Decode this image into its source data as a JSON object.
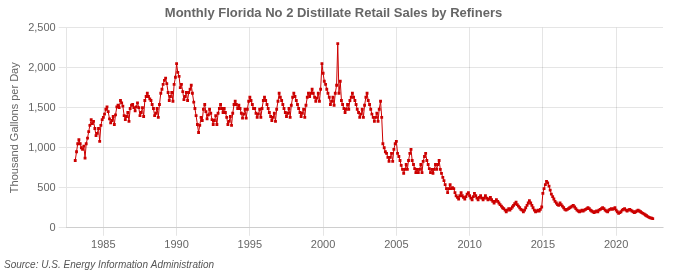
{
  "chart_data": {
    "type": "line",
    "title": "Monthly Florida No 2 Distillate Retail Sales by Refiners",
    "ylabel": "Thousand Gallons per Day",
    "annotations": [
      "Source: U.S. Energy Information Administration"
    ],
    "color": "#cc0000",
    "marker": "square",
    "grid": true,
    "xlim": [
      1982.5,
      2023.2
    ],
    "xticks": [
      1985,
      1990,
      1995,
      2000,
      2005,
      2010,
      2015,
      2020
    ],
    "ylim": [
      0,
      2500
    ],
    "yticks": [
      0,
      500,
      {
        "value": 1000,
        "label": "1,000"
      },
      {
        "value": 1500,
        "label": "1,500"
      },
      {
        "value": 2000,
        "label": "2,000"
      },
      {
        "value": 2500,
        "label": "2,500"
      }
    ],
    "x": [
      1983.08,
      1983.17,
      1983.25,
      1983.33,
      1983.42,
      1983.5,
      1983.58,
      1983.67,
      1983.75,
      1983.83,
      1983.92,
      1984,
      1984.08,
      1984.17,
      1984.25,
      1984.33,
      1984.42,
      1984.5,
      1984.58,
      1984.67,
      1984.75,
      1984.83,
      1984.92,
      1985,
      1985.08,
      1985.17,
      1985.25,
      1985.33,
      1985.42,
      1985.5,
      1985.58,
      1985.67,
      1985.75,
      1985.83,
      1985.92,
      1986,
      1986.08,
      1986.17,
      1986.25,
      1986.33,
      1986.42,
      1986.5,
      1986.58,
      1986.67,
      1986.75,
      1986.83,
      1986.92,
      1987,
      1987.08,
      1987.17,
      1987.25,
      1987.33,
      1987.42,
      1987.5,
      1987.58,
      1987.67,
      1987.75,
      1987.83,
      1987.92,
      1988,
      1988.08,
      1988.17,
      1988.25,
      1988.33,
      1988.42,
      1988.5,
      1988.58,
      1988.67,
      1988.75,
      1988.83,
      1988.92,
      1989,
      1989.08,
      1989.17,
      1989.25,
      1989.33,
      1989.42,
      1989.5,
      1989.58,
      1989.67,
      1989.75,
      1989.83,
      1989.92,
      1990,
      1990.08,
      1990.17,
      1990.25,
      1990.33,
      1990.42,
      1990.5,
      1990.58,
      1990.67,
      1990.75,
      1990.83,
      1990.92,
      1991,
      1991.08,
      1991.17,
      1991.25,
      1991.33,
      1991.42,
      1991.5,
      1991.58,
      1991.67,
      1991.75,
      1991.83,
      1991.92,
      1992,
      1992.08,
      1992.17,
      1992.25,
      1992.33,
      1992.42,
      1992.5,
      1992.58,
      1992.67,
      1992.75,
      1992.83,
      1992.92,
      1993,
      1993.08,
      1993.17,
      1993.25,
      1993.33,
      1993.42,
      1993.5,
      1993.58,
      1993.67,
      1993.75,
      1993.83,
      1993.92,
      1994,
      1994.08,
      1994.17,
      1994.25,
      1994.33,
      1994.42,
      1994.5,
      1994.58,
      1994.67,
      1994.75,
      1994.83,
      1994.92,
      1995,
      1995.08,
      1995.17,
      1995.25,
      1995.33,
      1995.42,
      1995.5,
      1995.58,
      1995.67,
      1995.75,
      1995.83,
      1995.92,
      1996,
      1996.08,
      1996.17,
      1996.25,
      1996.33,
      1996.42,
      1996.5,
      1996.58,
      1996.67,
      1996.75,
      1996.83,
      1996.92,
      1997,
      1997.08,
      1997.17,
      1997.25,
      1997.33,
      1997.42,
      1997.5,
      1997.58,
      1997.67,
      1997.75,
      1997.83,
      1997.92,
      1998,
      1998.08,
      1998.17,
      1998.25,
      1998.33,
      1998.42,
      1998.5,
      1998.58,
      1998.67,
      1998.75,
      1998.83,
      1998.92,
      1999,
      1999.08,
      1999.17,
      1999.25,
      1999.33,
      1999.42,
      1999.5,
      1999.58,
      1999.67,
      1999.75,
      1999.83,
      1999.92,
      2000,
      2000.08,
      2000.17,
      2000.25,
      2000.33,
      2000.42,
      2000.5,
      2000.58,
      2000.67,
      2000.75,
      2000.83,
      2000.92,
      2001,
      2001.08,
      2001.17,
      2001.25,
      2001.33,
      2001.42,
      2001.5,
      2001.58,
      2001.67,
      2001.75,
      2001.83,
      2001.92,
      2002,
      2002.08,
      2002.17,
      2002.25,
      2002.33,
      2002.42,
      2002.5,
      2002.58,
      2002.67,
      2002.75,
      2002.83,
      2002.92,
      2003,
      2003.08,
      2003.17,
      2003.25,
      2003.33,
      2003.42,
      2003.5,
      2003.58,
      2003.67,
      2003.75,
      2003.83,
      2003.92,
      2004,
      2004.08,
      2004.17,
      2004.25,
      2004.33,
      2004.42,
      2004.5,
      2004.58,
      2004.67,
      2004.75,
      2004.83,
      2004.92,
      2005,
      2005.08,
      2005.17,
      2005.25,
      2005.33,
      2005.42,
      2005.5,
      2005.58,
      2005.67,
      2005.75,
      2005.83,
      2005.92,
      2006,
      2006.08,
      2006.17,
      2006.25,
      2006.33,
      2006.42,
      2006.5,
      2006.58,
      2006.67,
      2006.75,
      2006.83,
      2006.92,
      2007,
      2007.08,
      2007.17,
      2007.25,
      2007.33,
      2007.42,
      2007.5,
      2007.58,
      2007.67,
      2007.75,
      2007.83,
      2007.92,
      2008,
      2008.08,
      2008.17,
      2008.25,
      2008.33,
      2008.42,
      2008.5,
      2008.58,
      2008.67,
      2008.75,
      2008.83,
      2008.92,
      2009,
      2009.08,
      2009.17,
      2009.25,
      2009.33,
      2009.42,
      2009.5,
      2009.58,
      2009.67,
      2009.75,
      2009.83,
      2009.92,
      2010,
      2010.08,
      2010.17,
      2010.25,
      2010.33,
      2010.42,
      2010.5,
      2010.58,
      2010.67,
      2010.75,
      2010.83,
      2010.92,
      2011,
      2011.08,
      2011.17,
      2011.25,
      2011.33,
      2011.42,
      2011.5,
      2011.58,
      2011.67,
      2011.75,
      2011.83,
      2011.92,
      2012,
      2012.08,
      2012.17,
      2012.25,
      2012.33,
      2012.42,
      2012.5,
      2012.58,
      2012.67,
      2012.75,
      2012.83,
      2012.92,
      2013,
      2013.08,
      2013.17,
      2013.25,
      2013.33,
      2013.42,
      2013.5,
      2013.58,
      2013.67,
      2013.75,
      2013.83,
      2013.92,
      2014,
      2014.08,
      2014.17,
      2014.25,
      2014.33,
      2014.42,
      2014.5,
      2014.58,
      2014.67,
      2014.75,
      2014.83,
      2014.92,
      2015,
      2015.08,
      2015.17,
      2015.25,
      2015.33,
      2015.42,
      2015.5,
      2015.58,
      2015.67,
      2015.75,
      2015.83,
      2015.92,
      2016,
      2016.08,
      2016.17,
      2016.25,
      2016.33,
      2016.42,
      2016.5,
      2016.58,
      2016.67,
      2016.75,
      2016.83,
      2016.92,
      2017,
      2017.08,
      2017.17,
      2017.25,
      2017.33,
      2017.42,
      2017.5,
      2017.58,
      2017.67,
      2017.75,
      2017.83,
      2017.92,
      2018,
      2018.08,
      2018.17,
      2018.25,
      2018.33,
      2018.42,
      2018.5,
      2018.58,
      2018.67,
      2018.75,
      2018.83,
      2018.92,
      2019,
      2019.08,
      2019.17,
      2019.25,
      2019.33,
      2019.42,
      2019.5,
      2019.58,
      2019.67,
      2019.75,
      2019.83,
      2019.92,
      2020,
      2020.08,
      2020.17,
      2020.25,
      2020.33,
      2020.42,
      2020.5,
      2020.58,
      2020.67,
      2020.75,
      2020.83,
      2020.92,
      2021,
      2021.08,
      2021.17,
      2021.25,
      2021.33,
      2021.42,
      2021.5,
      2021.58,
      2021.67,
      2021.75,
      2021.83,
      2021.92,
      2022,
      2022.08,
      2022.17,
      2022.25,
      2022.33,
      2022.42,
      2022.5
    ],
    "values": [
      840,
      950,
      1050,
      1100,
      1050,
      1000,
      980,
      1020,
      870,
      1050,
      1120,
      1200,
      1280,
      1350,
      1300,
      1330,
      1240,
      1150,
      1180,
      1240,
      1080,
      1280,
      1350,
      1380,
      1420,
      1480,
      1510,
      1450,
      1360,
      1310,
      1340,
      1390,
      1290,
      1410,
      1510,
      1530,
      1500,
      1590,
      1560,
      1520,
      1400,
      1350,
      1390,
      1440,
      1330,
      1490,
      1530,
      1540,
      1500,
      1460,
      1510,
      1560,
      1500,
      1400,
      1440,
      1500,
      1390,
      1590,
      1640,
      1680,
      1640,
      1610,
      1590,
      1540,
      1490,
      1400,
      1430,
      1490,
      1380,
      1540,
      1680,
      1730,
      1790,
      1840,
      1870,
      1800,
      1690,
      1590,
      1640,
      1690,
      1580,
      1790,
      1880,
      2050,
      1940,
      1890,
      1750,
      1790,
      1700,
      1600,
      1640,
      1690,
      1590,
      1690,
      1730,
      1780,
      1680,
      1570,
      1490,
      1400,
      1290,
      1190,
      1280,
      1380,
      1340,
      1480,
      1540,
      1450,
      1360,
      1410,
      1480,
      1430,
      1350,
      1290,
      1340,
      1400,
      1290,
      1430,
      1490,
      1540,
      1490,
      1440,
      1490,
      1440,
      1380,
      1290,
      1330,
      1390,
      1280,
      1430,
      1540,
      1580,
      1540,
      1490,
      1530,
      1490,
      1430,
      1370,
      1420,
      1480,
      1370,
      1480,
      1580,
      1630,
      1590,
      1540,
      1490,
      1490,
      1430,
      1380,
      1420,
      1480,
      1380,
      1490,
      1590,
      1630,
      1590,
      1540,
      1490,
      1440,
      1390,
      1340,
      1380,
      1430,
      1330,
      1480,
      1580,
      1680,
      1630,
      1590,
      1540,
      1490,
      1440,
      1390,
      1430,
      1490,
      1380,
      1530,
      1630,
      1680,
      1640,
      1590,
      1540,
      1490,
      1440,
      1390,
      1430,
      1480,
      1380,
      1530,
      1630,
      1680,
      1640,
      1680,
      1730,
      1680,
      1630,
      1580,
      1620,
      1680,
      1580,
      1730,
      2050,
      1930,
      1830,
      1790,
      1730,
      1680,
      1630,
      1540,
      1580,
      1630,
      1530,
      1680,
      1780,
      2300,
      1680,
      1830,
      1590,
      1540,
      1490,
      1440,
      1480,
      1540,
      1480,
      1590,
      1630,
      1680,
      1630,
      1590,
      1540,
      1480,
      1440,
      1380,
      1420,
      1480,
      1380,
      1530,
      1630,
      1680,
      1590,
      1540,
      1480,
      1420,
      1380,
      1330,
      1380,
      1430,
      1330,
      1480,
      1580,
      1380,
      1050,
      1000,
      950,
      930,
      880,
      830,
      880,
      930,
      830,
      980,
      1050,
      1080,
      930,
      890,
      840,
      780,
      730,
      680,
      730,
      790,
      730,
      840,
      930,
      980,
      840,
      790,
      740,
      690,
      730,
      690,
      730,
      790,
      690,
      830,
      890,
      930,
      840,
      790,
      740,
      690,
      730,
      680,
      730,
      790,
      730,
      790,
      840,
      730,
      680,
      630,
      590,
      540,
      490,
      440,
      490,
      540,
      490,
      500,
      490,
      440,
      400,
      380,
      360,
      400,
      440,
      400,
      380,
      360,
      390,
      420,
      440,
      400,
      370,
      350,
      390,
      430,
      400,
      370,
      350,
      380,
      400,
      370,
      350,
      370,
      400,
      370,
      350,
      360,
      380,
      350,
      330,
      310,
      330,
      350,
      330,
      310,
      290,
      270,
      250,
      240,
      220,
      200,
      220,
      240,
      220,
      240,
      260,
      280,
      300,
      320,
      290,
      270,
      250,
      230,
      220,
      200,
      220,
      250,
      280,
      310,
      340,
      310,
      280,
      250,
      220,
      200,
      210,
      220,
      210,
      230,
      260,
      430,
      490,
      540,
      580,
      560,
      520,
      470,
      420,
      390,
      360,
      330,
      310,
      290,
      280,
      310,
      290,
      270,
      250,
      230,
      220,
      230,
      240,
      250,
      260,
      270,
      280,
      260,
      240,
      220,
      210,
      200,
      210,
      220,
      210,
      220,
      230,
      240,
      250,
      240,
      220,
      210,
      200,
      190,
      200,
      210,
      200,
      220,
      230,
      240,
      250,
      240,
      220,
      210,
      200,
      220,
      230,
      240,
      230,
      240,
      250,
      220,
      200,
      180,
      190,
      200,
      220,
      230,
      240,
      220,
      210,
      220,
      230,
      220,
      210,
      200,
      190,
      200,
      210,
      220,
      210,
      200,
      190,
      180,
      170,
      160,
      150,
      140,
      130,
      125,
      120,
      115
    ]
  }
}
